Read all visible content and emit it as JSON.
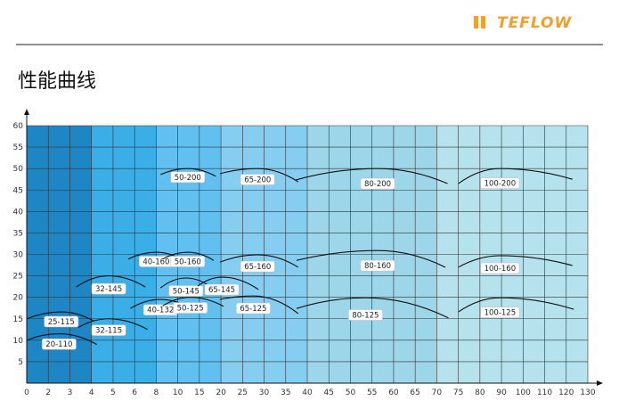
{
  "header": {
    "logo": "TEFLOW"
  },
  "chart_data": {
    "type": "curves",
    "title": "性能曲线",
    "xlim": [
      0,
      130
    ],
    "ylim": [
      0,
      60
    ],
    "xticks": [
      0,
      2,
      3,
      4,
      5,
      6,
      8,
      10,
      15,
      20,
      25,
      30,
      35,
      40,
      45,
      50,
      55,
      60,
      65,
      70,
      75,
      80,
      90,
      100,
      110,
      120,
      130
    ],
    "yticks": [
      5,
      10,
      15,
      20,
      25,
      30,
      35,
      40,
      45,
      50,
      55,
      60
    ],
    "grid": true,
    "bands": [
      {
        "from": 0,
        "to": 4,
        "color": "#1f86c6"
      },
      {
        "from": 4,
        "to": 8,
        "color": "#3aaee6"
      },
      {
        "from": 8,
        "to": 20,
        "color": "#62c0f0"
      },
      {
        "from": 20,
        "to": 40,
        "color": "#86cdf2"
      },
      {
        "from": 40,
        "to": 70,
        "color": "#9dd5e9"
      },
      {
        "from": 70,
        "to": 130,
        "color": "#b5e2ed"
      }
    ],
    "series": [
      {
        "name": "20-110",
        "x": [
          0,
          2.5,
          4.25
        ],
        "values": [
          10,
          11.5,
          9
        ]
      },
      {
        "name": "25-115",
        "x": [
          0,
          2.6,
          4.1
        ],
        "values": [
          15,
          16.6,
          14.5
        ]
      },
      {
        "name": "32-115",
        "x": [
          3.4,
          4.8,
          7.2
        ],
        "values": [
          13,
          15,
          12.5
        ]
      },
      {
        "name": "32-145",
        "x": [
          3.3,
          4.8,
          7.0
        ],
        "values": [
          22.4,
          25,
          22.4
        ]
      },
      {
        "name": "40-132",
        "x": [
          5.8,
          8.4,
          12.7
        ],
        "values": [
          17.4,
          19.5,
          17.6
        ]
      },
      {
        "name": "40-160",
        "x": [
          5.7,
          8,
          11.3
        ],
        "values": [
          28.9,
          30.5,
          28.6
        ]
      },
      {
        "name": "50-125",
        "x": [
          8.6,
          12.9,
          20.6
        ],
        "values": [
          18,
          20,
          17.9
        ]
      },
      {
        "name": "50-160",
        "x": [
          8.6,
          12.3,
          18.3
        ],
        "values": [
          28.9,
          30.5,
          28.6
        ]
      },
      {
        "name": "50-145",
        "x": [
          8.4,
          11.9,
          18.8
        ],
        "values": [
          22.2,
          24.5,
          21.6
        ]
      },
      {
        "name": "65-145",
        "x": [
          14.6,
          20.2,
          28.7
        ],
        "values": [
          22.6,
          24.7,
          21.8
        ]
      },
      {
        "name": "50-200",
        "x": [
          8.4,
          12.3,
          18.8
        ],
        "values": [
          48.6,
          50,
          48.2
        ]
      },
      {
        "name": "65-200",
        "x": [
          19.8,
          28.5,
          37.9
        ],
        "values": [
          48.8,
          50,
          46.9
        ]
      },
      {
        "name": "65-160",
        "x": [
          19.8,
          28.5,
          37.9
        ],
        "values": [
          28.2,
          29.9,
          27
        ]
      },
      {
        "name": "65-125",
        "x": [
          19.8,
          27.5,
          37.9
        ],
        "values": [
          19.5,
          20.3,
          16.2
        ]
      },
      {
        "name": "80-200",
        "x": [
          37.2,
          56.3,
          72.5
        ],
        "values": [
          47.3,
          50,
          46.5
        ]
      },
      {
        "name": "80-160",
        "x": [
          37.5,
          56.3,
          72
        ],
        "values": [
          28.6,
          30.9,
          27
        ]
      },
      {
        "name": "80-125",
        "x": [
          37.5,
          53.5,
          72.7
        ],
        "values": [
          17.4,
          19.9,
          15.2
        ]
      },
      {
        "name": "100-200",
        "x": [
          75,
          89.3,
          122.9
        ],
        "values": [
          46.5,
          50,
          47.5
        ]
      },
      {
        "name": "100-160",
        "x": [
          75,
          89.3,
          122.9
        ],
        "values": [
          27,
          29.7,
          27.4
        ]
      },
      {
        "name": "100-125",
        "x": [
          75,
          89.3,
          123.5
        ],
        "values": [
          16.6,
          19.9,
          17.2
        ]
      }
    ]
  }
}
